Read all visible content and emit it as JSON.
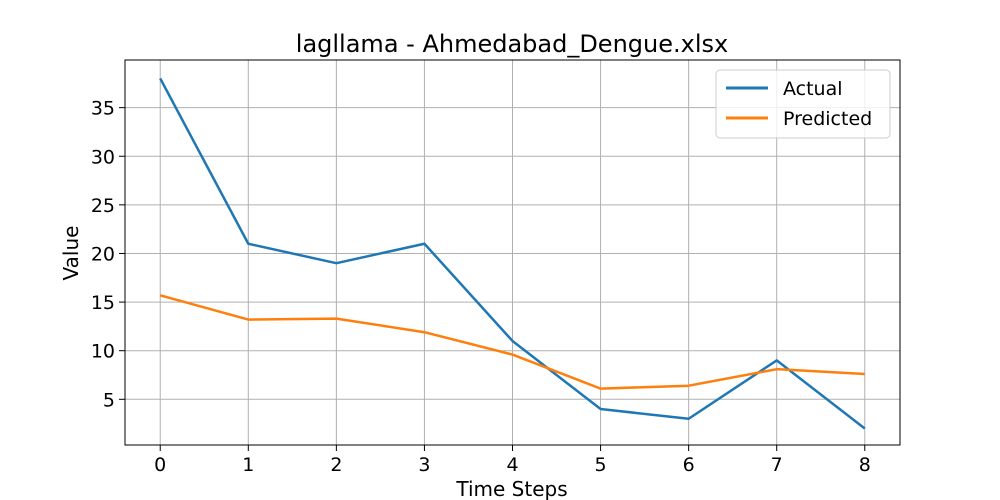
{
  "chart_data": {
    "type": "line",
    "title": "lagllama - Ahmedabad_Dengue.xlsx",
    "xlabel": "Time Steps",
    "ylabel": "Value",
    "x": [
      0,
      1,
      2,
      3,
      4,
      5,
      6,
      7,
      8
    ],
    "xticks": [
      "0",
      "1",
      "2",
      "3",
      "4",
      "5",
      "6",
      "7",
      "8"
    ],
    "yticks": [
      "5",
      "10",
      "15",
      "20",
      "25",
      "30",
      "35"
    ],
    "xlim": [
      -0.4,
      8.4
    ],
    "ylim": [
      0.3,
      39.9
    ],
    "grid": true,
    "legend_position": "top-right",
    "series": [
      {
        "name": "Actual",
        "color": "#1f77b4",
        "values": [
          38,
          21,
          19,
          21,
          11,
          4,
          3,
          9,
          2
        ]
      },
      {
        "name": "Predicted",
        "color": "#ff7f0e",
        "values": [
          15.7,
          13.2,
          13.3,
          11.9,
          9.6,
          6.1,
          6.4,
          8.1,
          7.6
        ]
      }
    ]
  }
}
